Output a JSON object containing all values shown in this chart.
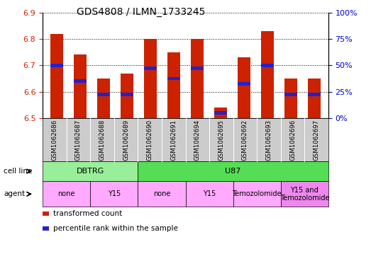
{
  "title": "GDS4808 / ILMN_1733245",
  "samples": [
    "GSM1062686",
    "GSM1062687",
    "GSM1062688",
    "GSM1062689",
    "GSM1062690",
    "GSM1062691",
    "GSM1062694",
    "GSM1062695",
    "GSM1062692",
    "GSM1062693",
    "GSM1062696",
    "GSM1062697"
  ],
  "bar_values": [
    6.82,
    6.74,
    6.65,
    6.67,
    6.8,
    6.75,
    6.8,
    6.54,
    6.73,
    6.83,
    6.65,
    6.65
  ],
  "blue_values": [
    6.7,
    6.64,
    6.59,
    6.59,
    6.69,
    6.65,
    6.69,
    6.52,
    6.63,
    6.7,
    6.59,
    6.59
  ],
  "ymin": 6.5,
  "ymax": 6.9,
  "yticks": [
    6.5,
    6.6,
    6.7,
    6.8,
    6.9
  ],
  "right_yticks_labels": [
    "0%",
    "25%",
    "50%",
    "75%",
    "100%"
  ],
  "bar_color": "#cc2200",
  "blue_color": "#2222cc",
  "bar_width": 0.55,
  "cell_line_groups": [
    {
      "text": "DBTRG",
      "start": 0,
      "end": 3,
      "color": "#99ee99"
    },
    {
      "text": "U87",
      "start": 4,
      "end": 11,
      "color": "#55dd55"
    }
  ],
  "agent_groups": [
    {
      "text": "none",
      "start": 0,
      "end": 1,
      "color": "#ffaaff"
    },
    {
      "text": "Y15",
      "start": 2,
      "end": 3,
      "color": "#ffaaff"
    },
    {
      "text": "none",
      "start": 4,
      "end": 5,
      "color": "#ffaaff"
    },
    {
      "text": "Y15",
      "start": 6,
      "end": 7,
      "color": "#ffaaff"
    },
    {
      "text": "Temozolomide",
      "start": 8,
      "end": 9,
      "color": "#ffaaff"
    },
    {
      "text": "Y15 and\nTemozolomide",
      "start": 10,
      "end": 11,
      "color": "#ee88ee"
    }
  ],
  "legend_items": [
    {
      "label": "transformed count",
      "color": "#cc2200"
    },
    {
      "label": "percentile rank within the sample",
      "color": "#2222cc"
    }
  ],
  "bg_color": "#ffffff",
  "tick_color_left": "#cc2200",
  "tick_color_right": "#0000cc",
  "sample_bg_color": "#cccccc",
  "cell_line_label": "cell line",
  "agent_label": "agent"
}
